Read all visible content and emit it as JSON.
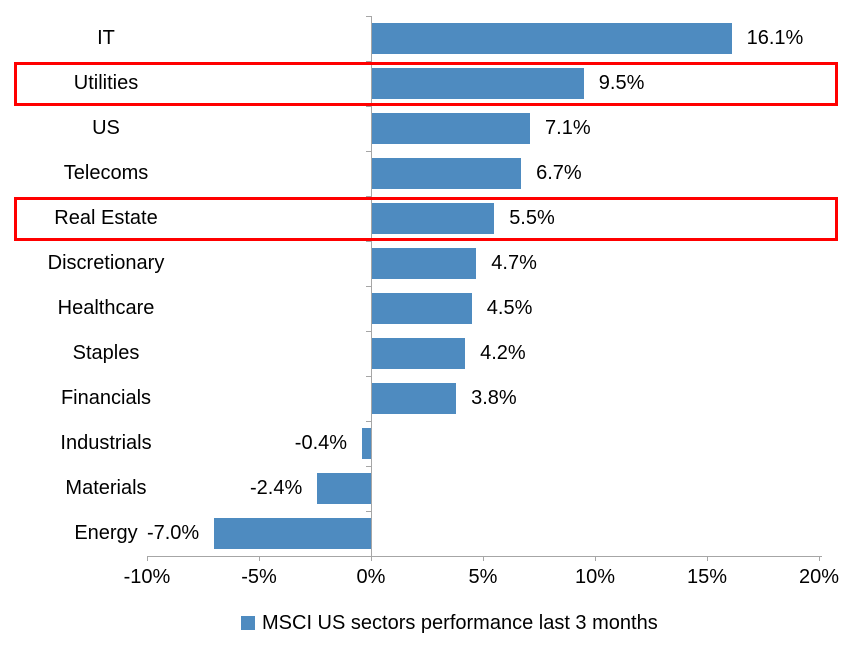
{
  "chart_data": {
    "type": "bar",
    "orientation": "horizontal",
    "title": "",
    "xlabel": "",
    "ylabel": "",
    "categories": [
      "IT",
      "Utilities",
      "US",
      "Telecoms",
      "Real Estate",
      "Discretionary",
      "Healthcare",
      "Staples",
      "Financials",
      "Industrials",
      "Materials",
      "Energy"
    ],
    "values": [
      16.1,
      9.5,
      7.1,
      6.7,
      5.5,
      4.7,
      4.5,
      4.2,
      3.8,
      -0.4,
      -2.4,
      -7.0
    ],
    "value_labels": [
      "16.1%",
      "9.5%",
      "7.1%",
      "6.7%",
      "5.5%",
      "4.7%",
      "4.5%",
      "4.2%",
      "3.8%",
      "-0.4%",
      "-2.4%",
      "-7.0%"
    ],
    "x_ticks": [
      "-10%",
      "-5%",
      "0%",
      "5%",
      "10%",
      "15%",
      "20%"
    ],
    "x_tick_values": [
      -10,
      -5,
      0,
      5,
      10,
      15,
      20
    ],
    "xlim": [
      -10,
      20
    ],
    "grid": false,
    "legend": "MSCI US sectors performance last 3 months",
    "legend_position": "bottom",
    "bar_color": "#4E8BC0",
    "axis_color": "#A6A6A6",
    "highlight_color": "#FF0000",
    "highlighted_categories": [
      "Utilities",
      "Real Estate"
    ]
  }
}
